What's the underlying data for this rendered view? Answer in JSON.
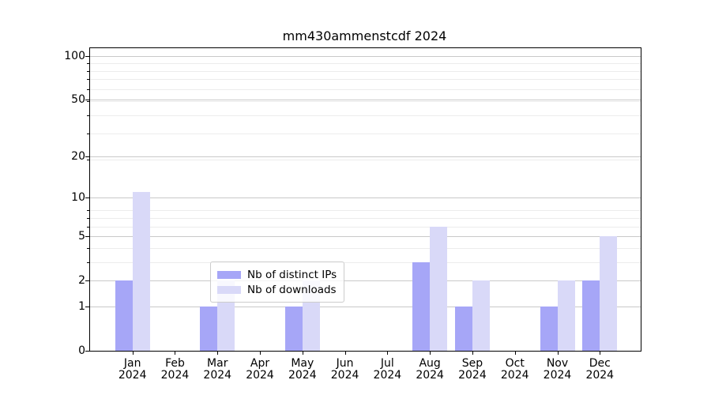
{
  "chart_data": {
    "type": "bar",
    "title": "mm430ammenstcdf 2024",
    "categories": [
      "Jan",
      "Feb",
      "Mar",
      "Apr",
      "May",
      "Jun",
      "Jul",
      "Aug",
      "Sep",
      "Oct",
      "Nov",
      "Dec"
    ],
    "x_tick_year": "2024",
    "series": [
      {
        "name": "Nb of distinct IPs",
        "color": "#a6a6f7",
        "values": [
          2,
          0,
          1,
          0,
          1,
          0,
          0,
          3,
          1,
          0,
          1,
          2
        ]
      },
      {
        "name": "Nb of downloads",
        "color": "#d9d9f8",
        "values": [
          11,
          0,
          2,
          0,
          2,
          0,
          0,
          6,
          2,
          0,
          2,
          5
        ]
      }
    ],
    "xlabel": "",
    "ylabel": "",
    "yscale": "log1p",
    "y_tick_values": [
      0,
      1,
      2,
      5,
      10,
      20,
      50,
      100
    ],
    "y_tick_labels": [
      "0",
      "1",
      "2",
      "5",
      "10",
      "20",
      "50",
      "100"
    ],
    "y_minor_gridlines_in_1p_space": [
      2,
      3,
      4,
      5,
      6,
      7,
      8,
      9,
      20,
      30,
      40,
      50,
      60,
      70,
      80,
      90
    ],
    "ylim_1p": [
      1,
      114
    ],
    "grid": "on",
    "legend_position": "lower center inside plot",
    "colors": {
      "major_grid": "#c9c9c9",
      "minor_grid": "#ececec",
      "spine": "#000000",
      "text": "#000000",
      "background": "#ffffff"
    }
  }
}
